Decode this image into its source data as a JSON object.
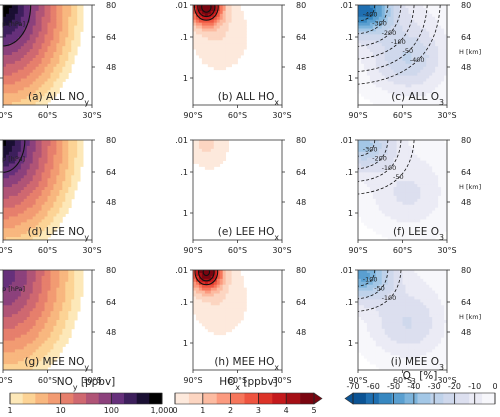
{
  "chart_data": {
    "type": "heatmap",
    "layout": {
      "rows": 3,
      "cols": 3
    },
    "x_ticks": [
      "90°S",
      "60°S",
      "30°S"
    ],
    "y_ticks_pressure": [
      ".01",
      ".1",
      "1"
    ],
    "y_label_pressure": "p [hPa]",
    "y_ticks_height": [
      "80",
      "64",
      "48"
    ],
    "y_label_height": "H [km]",
    "panels": [
      {
        "id": "a",
        "label": "(a) ALL NOy",
        "species": "NOy",
        "field": "noy",
        "scale": 1.0,
        "contours": [
          100,
          1000
        ]
      },
      {
        "id": "b",
        "label": "(b) ALL HOx",
        "species": "HOx",
        "field": "hox",
        "scale": 1.0,
        "contours": [
          3,
          4,
          5
        ]
      },
      {
        "id": "c",
        "label": "(c) ALL O3",
        "species": "O3",
        "field": "o3",
        "scale": 1.0,
        "contour_labels": [
          "-400",
          "-300",
          "-200",
          "-100",
          "-50",
          "-400"
        ]
      },
      {
        "id": "d",
        "label": "(d) LEE NOy",
        "species": "NOy",
        "field": "noy",
        "scale": 0.9,
        "contours": [
          100,
          1000
        ]
      },
      {
        "id": "e",
        "label": "(e) LEE HOx",
        "species": "HOx",
        "field": "hox",
        "scale": 0.12,
        "contours": []
      },
      {
        "id": "f",
        "label": "(f) LEE O3",
        "species": "O3",
        "field": "o3",
        "scale": 0.55,
        "contour_labels": [
          "-300",
          "-200",
          "-100",
          "-50"
        ]
      },
      {
        "id": "g",
        "label": "(g) MEE NOy",
        "species": "NOy",
        "field": "noy",
        "scale": 0.55,
        "contours": [
          100
        ]
      },
      {
        "id": "h",
        "label": "(h) MEE HOx",
        "species": "HOx",
        "field": "hox",
        "scale": 0.95,
        "contours": [
          3,
          4,
          5
        ]
      },
      {
        "id": "i",
        "label": "(i) MEE O3",
        "species": "O3",
        "field": "o3",
        "scale": 0.75,
        "contour_labels": [
          "-100",
          "-50",
          "-100"
        ]
      }
    ],
    "colorbars": [
      {
        "id": "noy",
        "label": "NOy [ppbv]",
        "scale": "log",
        "range": [
          1,
          1000
        ],
        "ticks": [
          "1",
          "10",
          "100",
          "1,000"
        ],
        "colors": [
          "#fde8b8",
          "#fcd395",
          "#f8b77f",
          "#f29b72",
          "#e67f6c",
          "#cf6870",
          "#b05476",
          "#8c417c",
          "#66307b",
          "#3d1f5c",
          "#1a0f33",
          "#000000"
        ]
      },
      {
        "id": "hox",
        "label": "HOx [ppbv]",
        "scale": "linear",
        "range": [
          0,
          5
        ],
        "ticks": [
          "0",
          "1",
          "2",
          "3",
          "4",
          "5"
        ],
        "colors": [
          "#fde9dc",
          "#fcd5c1",
          "#fcbba1",
          "#fb9a7f",
          "#f6765b",
          "#ee5440",
          "#dc3328",
          "#c4191c",
          "#a50f15",
          "#7a0510"
        ],
        "extend": "max"
      },
      {
        "id": "o3",
        "label": "O3 [%]",
        "scale": "linear",
        "range": [
          -70,
          0
        ],
        "ticks": [
          "-70",
          "-60",
          "-50",
          "-40",
          "-30",
          "-20",
          "-10",
          "0"
        ],
        "colors": [
          "#0b5394",
          "#1f6fb1",
          "#3787c0",
          "#5a9fd0",
          "#7db4dc",
          "#a3c7e6",
          "#bfd2ea",
          "#cfd8ec",
          "#dcdfef",
          "#ebebf5",
          "#f7f7fb"
        ],
        "extend": "min"
      }
    ]
  }
}
